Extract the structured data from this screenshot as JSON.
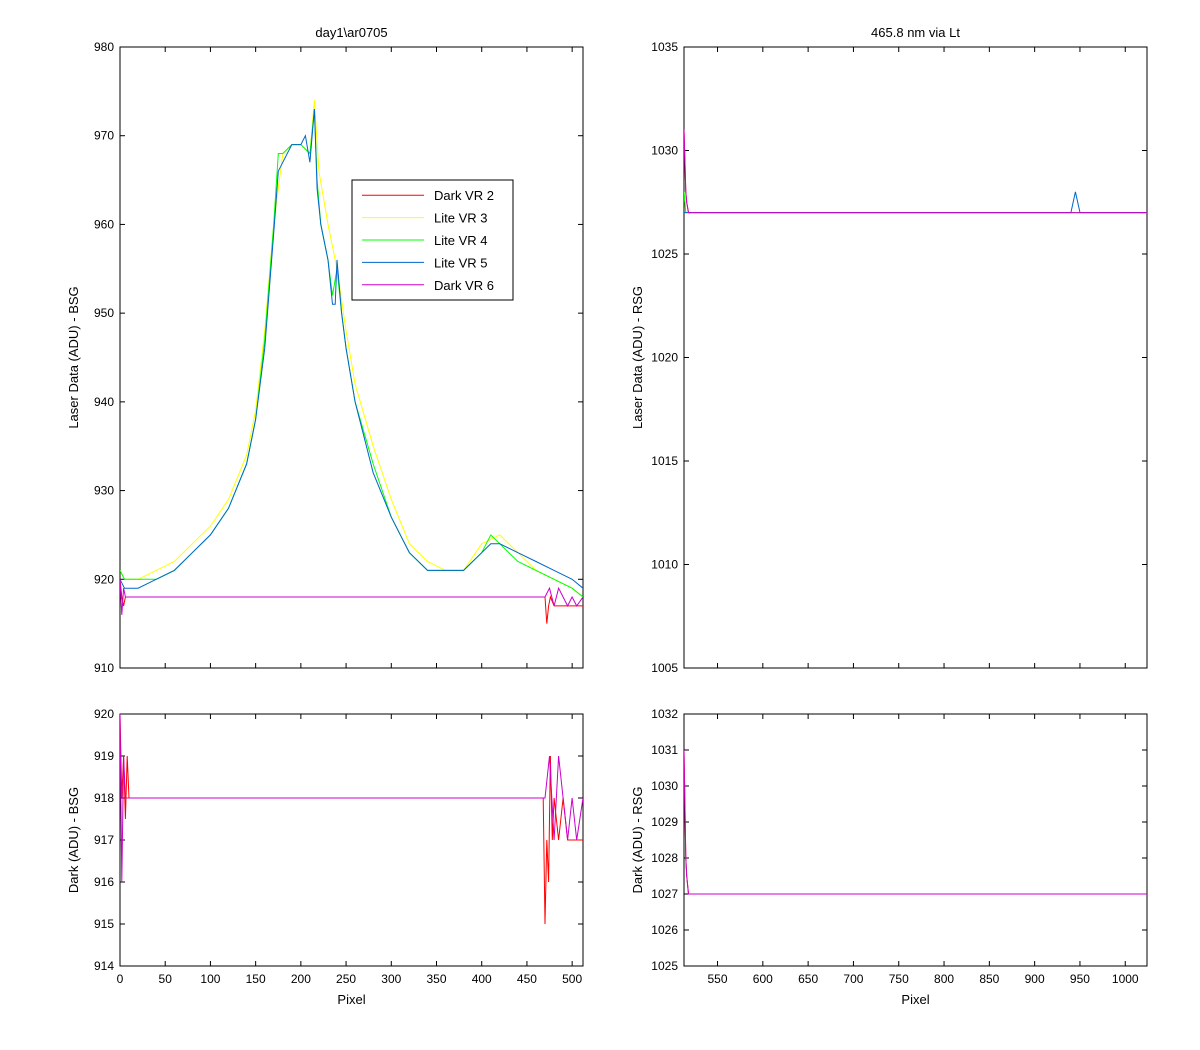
{
  "colors": {
    "background": "#ffffff",
    "axes": "#000000"
  },
  "chart_data": [
    {
      "id": "laser_bsg",
      "type": "line",
      "title": "day1\\ar0705",
      "xlabel": "",
      "ylabel": "Laser Data (ADU) - BSG",
      "xlim": [
        0,
        512
      ],
      "ylim": [
        910,
        980
      ],
      "xticks": [
        0,
        50,
        100,
        150,
        200,
        250,
        300,
        350,
        400,
        450,
        500
      ],
      "yticks": [
        910,
        920,
        930,
        940,
        950,
        960,
        970,
        980
      ],
      "show_xtick_labels": false,
      "grid": false,
      "legend": "inside-upper-right",
      "series": [
        {
          "name": "Dark VR 2",
          "color": "#ff0000",
          "x": [
            0,
            2,
            4,
            6,
            10,
            15,
            40,
            100,
            200,
            300,
            400,
            460,
            470,
            472,
            474,
            476,
            480,
            485,
            490,
            500,
            512
          ],
          "y": [
            920,
            918,
            917,
            918,
            918,
            918,
            918,
            918,
            918,
            918,
            918,
            918,
            918,
            915,
            917,
            918,
            917,
            917,
            917,
            917,
            917
          ]
        },
        {
          "name": "Lite VR 3",
          "color": "#ffff00",
          "x": [
            0,
            5,
            20,
            40,
            60,
            80,
            100,
            120,
            140,
            150,
            160,
            170,
            180,
            190,
            200,
            210,
            215,
            220,
            230,
            240,
            250,
            260,
            280,
            300,
            320,
            340,
            360,
            380,
            400,
            420,
            440,
            460,
            480,
            500,
            512
          ],
          "y": [
            921,
            920,
            920,
            921,
            922,
            924,
            926,
            929,
            934,
            939,
            948,
            960,
            968,
            969,
            969,
            968,
            974,
            966,
            960,
            955,
            948,
            942,
            935,
            929,
            924,
            922,
            921,
            921,
            924,
            925,
            923,
            921,
            920,
            919,
            918
          ]
        },
        {
          "name": "Lite VR 4",
          "color": "#00ff00",
          "x": [
            0,
            5,
            20,
            40,
            60,
            80,
            100,
            120,
            140,
            150,
            160,
            170,
            175,
            180,
            190,
            200,
            210,
            215,
            218,
            222,
            230,
            235,
            240,
            245,
            250,
            260,
            280,
            300,
            320,
            340,
            360,
            380,
            400,
            410,
            420,
            440,
            460,
            480,
            500,
            512
          ],
          "y": [
            921,
            920,
            920,
            920,
            921,
            923,
            925,
            928,
            933,
            938,
            947,
            960,
            968,
            968,
            969,
            969,
            968,
            973,
            965,
            960,
            956,
            952,
            955,
            950,
            946,
            940,
            933,
            927,
            923,
            921,
            921,
            921,
            923,
            925,
            924,
            922,
            921,
            920,
            919,
            918
          ]
        },
        {
          "name": "Lite VR 5",
          "color": "#0066cc",
          "x": [
            0,
            5,
            20,
            40,
            60,
            80,
            100,
            120,
            140,
            150,
            160,
            170,
            175,
            180,
            190,
            200,
            205,
            210,
            215,
            218,
            222,
            230,
            235,
            238,
            240,
            245,
            250,
            260,
            280,
            300,
            320,
            340,
            360,
            380,
            400,
            410,
            420,
            440,
            460,
            480,
            500,
            512
          ],
          "y": [
            920,
            919,
            919,
            920,
            921,
            923,
            925,
            928,
            933,
            938,
            946,
            959,
            966,
            967,
            969,
            969,
            970,
            967,
            973,
            964,
            960,
            956,
            951,
            951,
            956,
            950,
            946,
            940,
            932,
            927,
            923,
            921,
            921,
            921,
            923,
            924,
            924,
            923,
            922,
            921,
            920,
            919
          ]
        },
        {
          "name": "Dark VR 6",
          "color": "#cc00cc",
          "x": [
            0,
            2,
            4,
            6,
            8,
            10,
            15,
            40,
            80,
            100,
            150,
            200,
            250,
            300,
            350,
            380,
            400,
            450,
            460,
            470,
            475,
            480,
            485,
            490,
            495,
            500,
            505,
            512
          ],
          "y": [
            920,
            916,
            919,
            918,
            918,
            918,
            918,
            918,
            918,
            918,
            918,
            918,
            918,
            918,
            918,
            918,
            918,
            918,
            918,
            918,
            919,
            917,
            919,
            918,
            917,
            918,
            917,
            918
          ]
        }
      ]
    },
    {
      "id": "laser_rsg",
      "type": "line",
      "title": "465.8 nm via Lt",
      "xlabel": "",
      "ylabel": "Laser Data (ADU) - RSG",
      "xlim": [
        513,
        1024
      ],
      "ylim": [
        1005,
        1035
      ],
      "xticks": [
        550,
        600,
        650,
        700,
        750,
        800,
        850,
        900,
        950,
        1000
      ],
      "yticks": [
        1005,
        1010,
        1015,
        1020,
        1025,
        1030,
        1035
      ],
      "show_xtick_labels": false,
      "grid": false,
      "series": [
        {
          "name": "Dark VR 2",
          "color": "#ff0000",
          "x": [
            513,
            514,
            515,
            516,
            518,
            520,
            525,
            1024
          ],
          "y": [
            1031,
            1029.5,
            1028,
            1027.5,
            1027,
            1027,
            1027,
            1027
          ]
        },
        {
          "name": "Lite VR 3",
          "color": "#ffff00",
          "x": [
            513,
            515,
            520,
            530,
            1024
          ],
          "y": [
            1028,
            1027,
            1027,
            1027,
            1027
          ]
        },
        {
          "name": "Lite VR 4",
          "color": "#00ff00",
          "x": [
            513,
            515,
            520,
            530,
            1024
          ],
          "y": [
            1028,
            1027,
            1027,
            1027,
            1027
          ]
        },
        {
          "name": "Lite VR 5",
          "color": "#0066cc",
          "x": [
            513,
            515,
            520,
            530,
            940,
            945,
            950,
            1024
          ],
          "y": [
            1027,
            1027,
            1027,
            1027,
            1027,
            1028,
            1027,
            1027
          ]
        },
        {
          "name": "Dark VR 6",
          "color": "#cc00cc",
          "x": [
            513,
            514,
            515,
            516,
            518,
            520,
            525,
            1024
          ],
          "y": [
            1031,
            1029.5,
            1028,
            1027.5,
            1027,
            1027,
            1027,
            1027
          ]
        }
      ]
    },
    {
      "id": "dark_bsg",
      "type": "line",
      "title": "",
      "xlabel": "Pixel",
      "ylabel": "Dark (ADU) - BSG",
      "xlim": [
        0,
        512
      ],
      "ylim": [
        914,
        920
      ],
      "xticks": [
        0,
        50,
        100,
        150,
        200,
        250,
        300,
        350,
        400,
        450,
        500
      ],
      "yticks": [
        914,
        915,
        916,
        917,
        918,
        919,
        920
      ],
      "show_xtick_labels": true,
      "grid": false,
      "series": [
        {
          "name": "Dark VR 2",
          "color": "#ff0000",
          "x": [
            0,
            2,
            4,
            6,
            8,
            10,
            12,
            40,
            100,
            200,
            300,
            400,
            460,
            468,
            470,
            472,
            474,
            476,
            478,
            480,
            485,
            490,
            495,
            500,
            505,
            512
          ],
          "y": [
            920,
            918,
            919,
            917.5,
            919,
            918,
            918,
            918,
            918,
            918,
            918,
            918,
            918,
            918,
            915,
            917,
            916,
            919,
            917,
            918,
            917,
            918,
            917,
            917,
            917,
            917
          ]
        },
        {
          "name": "Dark VR 6",
          "color": "#cc00cc",
          "x": [
            0,
            2,
            4,
            6,
            8,
            10,
            15,
            40,
            80,
            100,
            150,
            200,
            250,
            300,
            350,
            380,
            400,
            460,
            470,
            475,
            480,
            485,
            490,
            495,
            500,
            505,
            512
          ],
          "y": [
            920,
            916,
            919,
            918,
            918,
            918,
            918,
            918,
            918,
            918,
            918,
            918,
            918,
            918,
            918,
            918,
            918,
            918,
            918,
            919,
            917,
            919,
            918,
            917,
            918,
            917,
            918
          ]
        }
      ]
    },
    {
      "id": "dark_rsg",
      "type": "line",
      "title": "",
      "xlabel": "Pixel",
      "ylabel": "Dark (ADU) - RSG",
      "xlim": [
        513,
        1024
      ],
      "ylim": [
        1025,
        1032
      ],
      "xticks": [
        550,
        600,
        650,
        700,
        750,
        800,
        850,
        900,
        950,
        1000
      ],
      "yticks": [
        1025,
        1026,
        1027,
        1028,
        1029,
        1030,
        1031,
        1032
      ],
      "show_xtick_labels": true,
      "grid": false,
      "series": [
        {
          "name": "Dark VR 2",
          "color": "#ff0000",
          "x": [
            513,
            514,
            515,
            516,
            518,
            520,
            525,
            1024
          ],
          "y": [
            1031,
            1029.5,
            1028,
            1027.5,
            1027,
            1027,
            1027,
            1027
          ]
        },
        {
          "name": "Dark VR 6",
          "color": "#cc00cc",
          "x": [
            513,
            514,
            515,
            516,
            518,
            520,
            525,
            1024
          ],
          "y": [
            1031,
            1029.5,
            1028,
            1027.5,
            1027,
            1027,
            1027,
            1027
          ]
        }
      ]
    }
  ]
}
